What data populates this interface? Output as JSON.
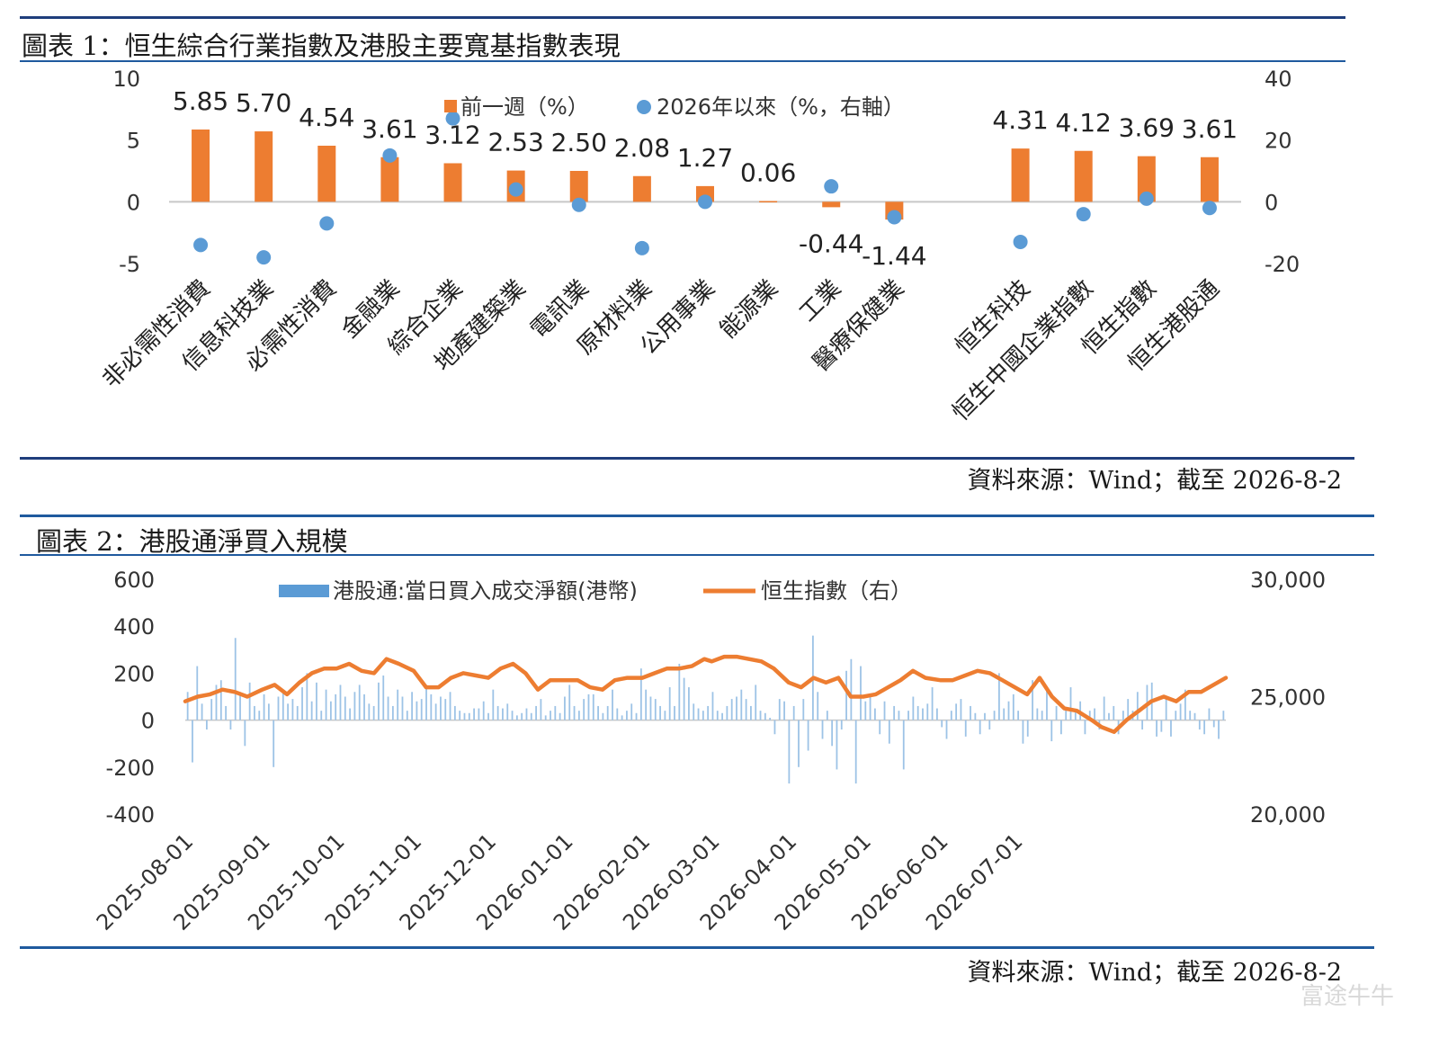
{
  "chart1": {
    "title": "圖表 1：恒生綜合行業指數及港股主要寬基指數表現",
    "source": "資料來源：Wind；截至 2026-8-2",
    "legend": {
      "bar_label": "前一週（%）",
      "dot_label": "2026年以來（%，右軸）"
    },
    "colors": {
      "bar": "#ED7D31",
      "dot": "#5B9BD5",
      "rule": "#1F3E7C"
    },
    "left_ticks": [
      "10",
      "5",
      "0",
      "-5"
    ],
    "right_ticks": [
      "40",
      "20",
      "0",
      "-20"
    ],
    "chart_data": {
      "type": "bar",
      "categories": [
        "非必需性消費",
        "信息科技業",
        "必需性消費",
        "金融業",
        "綜合企業",
        "地產建築業",
        "電訊業",
        "原材料業",
        "公用事業",
        "能源業",
        "工業",
        "醫療保健業",
        "",
        "恒生科技",
        "恒生中國企業指數",
        "恒生指數",
        "恒生港股通"
      ],
      "series": [
        {
          "name": "前一週（%）",
          "axis": "left",
          "values": [
            5.85,
            5.7,
            4.54,
            3.61,
            3.12,
            2.53,
            2.5,
            2.08,
            1.27,
            0.06,
            -0.44,
            -1.44,
            null,
            4.31,
            4.12,
            3.69,
            3.61
          ],
          "labels": [
            "5.85",
            "5.70",
            "4.54",
            "3.61",
            "3.12",
            "2.53",
            "2.50",
            "2.08",
            "1.27",
            "0.06",
            "-0.44",
            "-1.44",
            "",
            "4.31",
            "4.12",
            "3.69",
            "3.61"
          ]
        },
        {
          "name": "2026年以來（%，右軸）",
          "axis": "right",
          "values": [
            -14,
            -18,
            -7,
            15,
            27,
            4,
            -1,
            -15,
            0,
            null,
            5,
            -5,
            null,
            -13,
            -4,
            1,
            -2
          ]
        }
      ],
      "ylim_left": [
        -5,
        10
      ],
      "ylim_right": [
        -20,
        40
      ]
    }
  },
  "chart2": {
    "title": "圖表 2：港股通淨買入規模",
    "source": "資料來源：Wind；截至 2026-8-2",
    "legend": {
      "bar_label": "港股通:當日買入成交淨額(港幣)",
      "line_label": "恒生指數（右）"
    },
    "colors": {
      "bar": "#9DC3E6",
      "line": "#ED7D31",
      "rule": "#1F5A9E"
    },
    "left_ticks": [
      "600",
      "400",
      "200",
      "0",
      "-200",
      "-400"
    ],
    "right_ticks": [
      "30,000",
      "25,000",
      "20,000"
    ],
    "x_ticks": [
      "2025-08-01",
      "2025-09-01",
      "2025-10-01",
      "2025-11-01",
      "2025-12-01",
      "2026-01-01",
      "2026-02-01",
      "2026-03-01",
      "2026-04-01",
      "2026-05-01",
      "2026-06-01",
      "2026-07-01"
    ],
    "chart_data": {
      "type": "bar+line",
      "x_start": "2025-08-01",
      "x_end": "2026-08-01",
      "ylim_left": [
        -400,
        600
      ],
      "ylim_right": [
        20000,
        30000
      ],
      "line_points": [
        [
          "2025-08-01",
          24800
        ],
        [
          "2025-08-06",
          25000
        ],
        [
          "2025-08-11",
          25100
        ],
        [
          "2025-08-16",
          25300
        ],
        [
          "2025-08-21",
          25200
        ],
        [
          "2025-08-26",
          25000
        ],
        [
          "2025-09-01",
          25300
        ],
        [
          "2025-09-06",
          25500
        ],
        [
          "2025-09-11",
          25100
        ],
        [
          "2025-09-16",
          25600
        ],
        [
          "2025-09-21",
          26000
        ],
        [
          "2025-09-26",
          26200
        ],
        [
          "2025-10-01",
          26200
        ],
        [
          "2025-10-06",
          26400
        ],
        [
          "2025-10-11",
          26100
        ],
        [
          "2025-10-16",
          26000
        ],
        [
          "2025-10-21",
          26600
        ],
        [
          "2025-10-26",
          26400
        ],
        [
          "2025-11-01",
          26100
        ],
        [
          "2025-11-06",
          25400
        ],
        [
          "2025-11-11",
          25400
        ],
        [
          "2025-11-16",
          25800
        ],
        [
          "2025-11-21",
          26000
        ],
        [
          "2025-11-26",
          25900
        ],
        [
          "2025-12-01",
          25800
        ],
        [
          "2025-12-06",
          26200
        ],
        [
          "2025-12-11",
          26400
        ],
        [
          "2025-12-16",
          26000
        ],
        [
          "2025-12-21",
          25300
        ],
        [
          "2025-12-26",
          25700
        ],
        [
          "2026-01-01",
          25700
        ],
        [
          "2026-01-06",
          25700
        ],
        [
          "2026-01-11",
          25400
        ],
        [
          "2026-01-16",
          25300
        ],
        [
          "2026-01-21",
          25700
        ],
        [
          "2026-01-26",
          25800
        ],
        [
          "2026-02-01",
          25800
        ],
        [
          "2026-02-06",
          26000
        ],
        [
          "2026-02-11",
          26200
        ],
        [
          "2026-02-16",
          26200
        ],
        [
          "2026-02-21",
          26300
        ],
        [
          "2026-02-26",
          26600
        ],
        [
          "2026-03-01",
          26500
        ],
        [
          "2026-03-06",
          26700
        ],
        [
          "2026-03-11",
          26700
        ],
        [
          "2026-03-16",
          26600
        ],
        [
          "2026-03-21",
          26500
        ],
        [
          "2026-03-26",
          26200
        ],
        [
          "2026-04-01",
          25600
        ],
        [
          "2026-04-06",
          25400
        ],
        [
          "2026-04-11",
          25800
        ],
        [
          "2026-04-16",
          25600
        ],
        [
          "2026-04-21",
          25800
        ],
        [
          "2026-04-26",
          25000
        ],
        [
          "2026-05-01",
          25000
        ],
        [
          "2026-05-06",
          25100
        ],
        [
          "2026-05-11",
          25400
        ],
        [
          "2026-05-16",
          25700
        ],
        [
          "2026-05-21",
          26100
        ],
        [
          "2026-05-26",
          25800
        ],
        [
          "2026-06-01",
          25700
        ],
        [
          "2026-06-06",
          25700
        ],
        [
          "2026-06-11",
          25900
        ],
        [
          "2026-06-16",
          26100
        ],
        [
          "2026-06-21",
          26000
        ],
        [
          "2026-06-26",
          25700
        ],
        [
          "2026-07-01",
          25400
        ],
        [
          "2026-07-06",
          25100
        ],
        [
          "2026-07-11",
          25800
        ],
        [
          "2026-07-16",
          25000
        ],
        [
          "2026-07-21",
          24500
        ],
        [
          "2026-07-26",
          24400
        ],
        [
          "2026-08-01",
          24000
        ],
        [
          "2026-08-05",
          23700
        ],
        [
          "2026-08-10",
          23500
        ],
        [
          "2026-08-15",
          24000
        ],
        [
          "2026-08-20",
          24400
        ],
        [
          "2026-08-25",
          24800
        ],
        [
          "2026-08-30",
          25000
        ],
        [
          "2026-09-04",
          24800
        ],
        [
          "2026-09-09",
          25200
        ],
        [
          "2026-09-14",
          25200
        ],
        [
          "2026-09-19",
          25500
        ],
        [
          "2026-09-24",
          25800
        ]
      ],
      "bar_values": [
        120,
        -180,
        230,
        70,
        -40,
        90,
        150,
        170,
        60,
        -40,
        350,
        120,
        -110,
        160,
        60,
        40,
        110,
        70,
        -200,
        100,
        130,
        70,
        90,
        60,
        140,
        200,
        80,
        160,
        40,
        130,
        80,
        110,
        150,
        100,
        50,
        120,
        150,
        110,
        70,
        60,
        160,
        190,
        100,
        60,
        130,
        100,
        40,
        120,
        80,
        90,
        150,
        110,
        70,
        100,
        90,
        120,
        60,
        40,
        30,
        30,
        50,
        50,
        80,
        30,
        130,
        60,
        50,
        70,
        40,
        20,
        30,
        50,
        30,
        60,
        90,
        20,
        40,
        60,
        30,
        100,
        150,
        60,
        40,
        90,
        110,
        110,
        60,
        30,
        60,
        130,
        50,
        20,
        40,
        70,
        30,
        220,
        130,
        100,
        90,
        60,
        40,
        140,
        60,
        240,
        180,
        140,
        70,
        50,
        40,
        60,
        120,
        40,
        30,
        60,
        90,
        100,
        130,
        90,
        60,
        150,
        40,
        30,
        10,
        -60,
        90,
        80,
        -270,
        60,
        -200,
        90,
        -130,
        360,
        120,
        -80,
        40,
        -110,
        -210,
        -40,
        210,
        260,
        -270,
        230,
        80,
        100,
        50,
        -60,
        80,
        -100,
        60,
        40,
        -210,
        40,
        100,
        60,
        50,
        70,
        140,
        50,
        -30,
        -80,
        40,
        70,
        90,
        -70,
        60,
        30,
        -60,
        30,
        -40,
        40,
        200,
        50,
        80,
        110,
        40,
        -100,
        -70,
        170,
        50,
        40,
        140,
        -90,
        60,
        -60,
        50,
        140,
        40,
        80,
        -60,
        40,
        50,
        -40,
        100,
        30,
        60,
        -60,
        40,
        90,
        40,
        120,
        -40,
        150,
        160,
        -70,
        -50,
        90,
        -70,
        40,
        70,
        130,
        40,
        30,
        -40,
        -60,
        50,
        -30,
        -80,
        40
      ]
    }
  },
  "watermark": "富途牛牛"
}
